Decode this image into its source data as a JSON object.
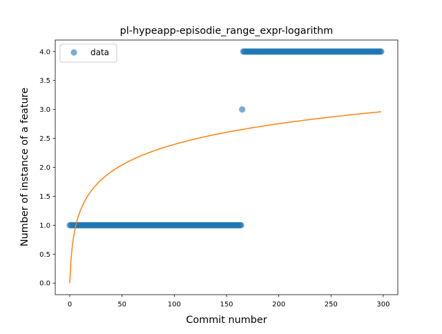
{
  "chart_data": {
    "type": "scatter",
    "title": "pl-hypeapp-episodie_range_expr-logarithm",
    "xlabel": "Commit number",
    "ylabel": "Number of instance of a feature",
    "xlim": [
      -13.9,
      313.9
    ],
    "ylim": [
      -0.2,
      4.2
    ],
    "xticks": [
      0,
      50,
      100,
      150,
      200,
      250,
      300
    ],
    "yticks": [
      0.0,
      0.5,
      1.0,
      1.5,
      2.0,
      2.5,
      3.0,
      3.5,
      4.0
    ],
    "ytick_labels": [
      "0.0",
      "0.5",
      "1.0",
      "1.5",
      "2.0",
      "2.5",
      "3.0",
      "3.5",
      "4.0"
    ],
    "grid": false,
    "legend": {
      "position": "upper-left",
      "entries": [
        "data"
      ]
    },
    "series": [
      {
        "name": "data",
        "kind": "points",
        "color": "#1f77b4",
        "alpha": 0.6,
        "segments": [
          {
            "x_start": 0,
            "x_end": 164,
            "y": 1.0
          },
          {
            "x_start": 165,
            "x_end": 165,
            "y": 3.0
          },
          {
            "x_start": 166,
            "x_end": 298,
            "y": 4.0
          }
        ]
      },
      {
        "kind": "line",
        "color": "#ff7f0e",
        "model": "a*ln(x+1)",
        "a": 0.5193,
        "x_range": [
          0,
          298
        ]
      }
    ]
  }
}
